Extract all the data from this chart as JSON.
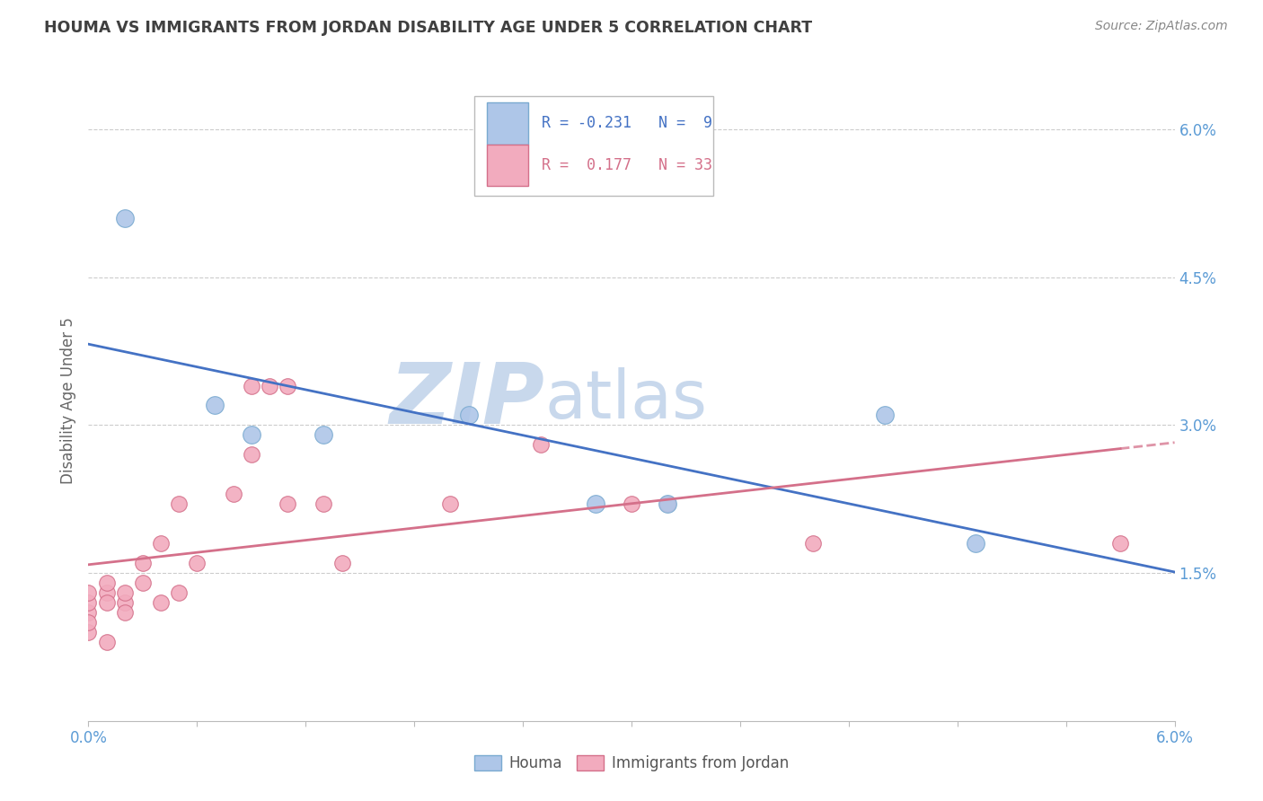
{
  "title": "HOUMA VS IMMIGRANTS FROM JORDAN DISABILITY AGE UNDER 5 CORRELATION CHART",
  "source": "Source: ZipAtlas.com",
  "ylabel": "Disability Age Under 5",
  "xlim": [
    0.0,
    0.06
  ],
  "ylim": [
    0.0,
    0.065
  ],
  "xticks": [
    0.0,
    0.006,
    0.012,
    0.018,
    0.024,
    0.03,
    0.036,
    0.042,
    0.048,
    0.054,
    0.06
  ],
  "xticklabels": [
    "0.0%",
    "",
    "",
    "",
    "",
    "",
    "",
    "",
    "",
    "",
    "6.0%"
  ],
  "yticks_right": [
    0.015,
    0.03,
    0.045,
    0.06
  ],
  "ytick_labels_right": [
    "1.5%",
    "3.0%",
    "4.5%",
    "6.0%"
  ],
  "hlines": [
    0.015,
    0.03,
    0.045,
    0.06
  ],
  "blue_R": -0.231,
  "blue_N": 9,
  "pink_R": 0.177,
  "pink_N": 33,
  "houma_x": [
    0.002,
    0.007,
    0.009,
    0.013,
    0.021,
    0.028,
    0.032,
    0.044,
    0.049
  ],
  "houma_y": [
    0.051,
    0.032,
    0.029,
    0.029,
    0.031,
    0.022,
    0.022,
    0.031,
    0.018
  ],
  "jordan_x": [
    0.0,
    0.0,
    0.0,
    0.0,
    0.0,
    0.001,
    0.001,
    0.001,
    0.001,
    0.002,
    0.002,
    0.002,
    0.003,
    0.003,
    0.004,
    0.004,
    0.005,
    0.005,
    0.006,
    0.008,
    0.009,
    0.009,
    0.01,
    0.011,
    0.011,
    0.013,
    0.014,
    0.02,
    0.025,
    0.03,
    0.032,
    0.04,
    0.057
  ],
  "jordan_y": [
    0.011,
    0.012,
    0.013,
    0.009,
    0.01,
    0.013,
    0.014,
    0.012,
    0.008,
    0.012,
    0.013,
    0.011,
    0.014,
    0.016,
    0.012,
    0.018,
    0.022,
    0.013,
    0.016,
    0.023,
    0.034,
    0.027,
    0.034,
    0.034,
    0.022,
    0.022,
    0.016,
    0.022,
    0.028,
    0.022,
    0.022,
    0.018,
    0.018
  ],
  "blue_line_color": "#4472C4",
  "pink_line_color": "#D4708A",
  "blue_dot_color": "#AEC6E8",
  "pink_dot_color": "#F2ABBE",
  "blue_dot_edge": "#7AAAD0",
  "pink_dot_edge": "#D4708A",
  "background_color": "#FFFFFF",
  "grid_color": "#CCCCCC",
  "title_color": "#404040",
  "axis_label_color": "#5B9BD5",
  "watermark_zip_color": "#C8D8EC",
  "watermark_atlas_color": "#C8D8EC"
}
